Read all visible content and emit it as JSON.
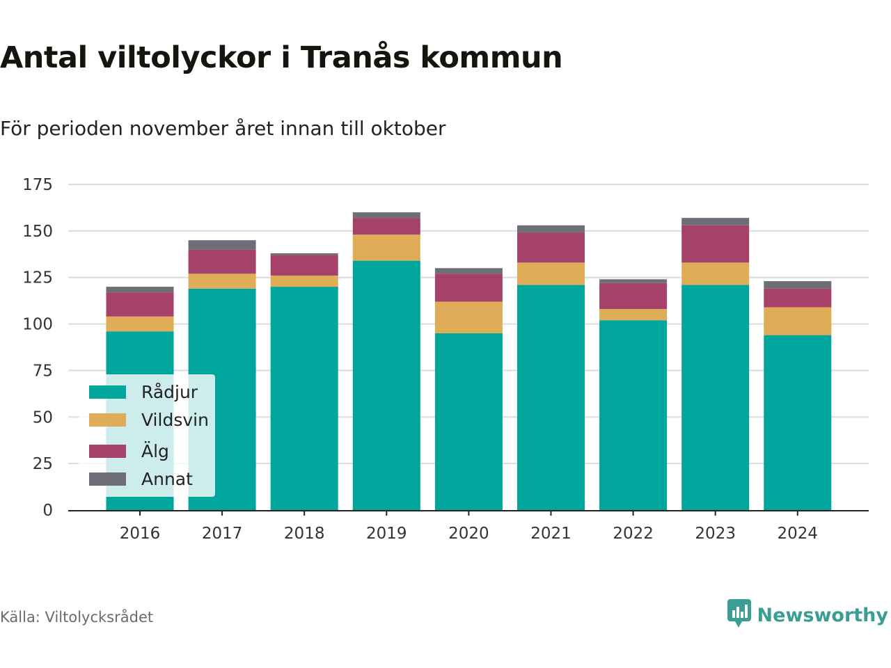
{
  "title": "Antal viltolyckor i Tranås kommun",
  "subtitle": "För perioden november året innan till oktober",
  "source": "Källa: Viltolycksrådet",
  "brand": {
    "name": "Newsworthy",
    "icon": "newsworthy-logo-icon",
    "color": "#3b9e94"
  },
  "chart_data": {
    "type": "bar",
    "stacked": true,
    "categories": [
      "2016",
      "2017",
      "2018",
      "2019",
      "2020",
      "2021",
      "2022",
      "2023",
      "2024"
    ],
    "series": [
      {
        "name": "Rådjur",
        "color": "#00a59b",
        "values": [
          96,
          119,
          120,
          134,
          95,
          121,
          102,
          121,
          94
        ]
      },
      {
        "name": "Vildsvin",
        "color": "#dfac58",
        "values": [
          8,
          8,
          6,
          14,
          17,
          12,
          6,
          12,
          15
        ]
      },
      {
        "name": "Älg",
        "color": "#a6426a",
        "values": [
          13,
          13,
          11,
          9,
          15,
          16,
          14,
          20,
          10
        ]
      },
      {
        "name": "Annat",
        "color": "#6e6e76",
        "values": [
          3,
          5,
          1,
          3,
          3,
          4,
          2,
          4,
          4
        ]
      }
    ],
    "y_ticks": [
      "0",
      "25",
      "50",
      "75",
      "100",
      "125",
      "150",
      "175"
    ],
    "ylim": [
      0,
      175
    ],
    "grid": true,
    "legend_position": "bottom-left"
  }
}
